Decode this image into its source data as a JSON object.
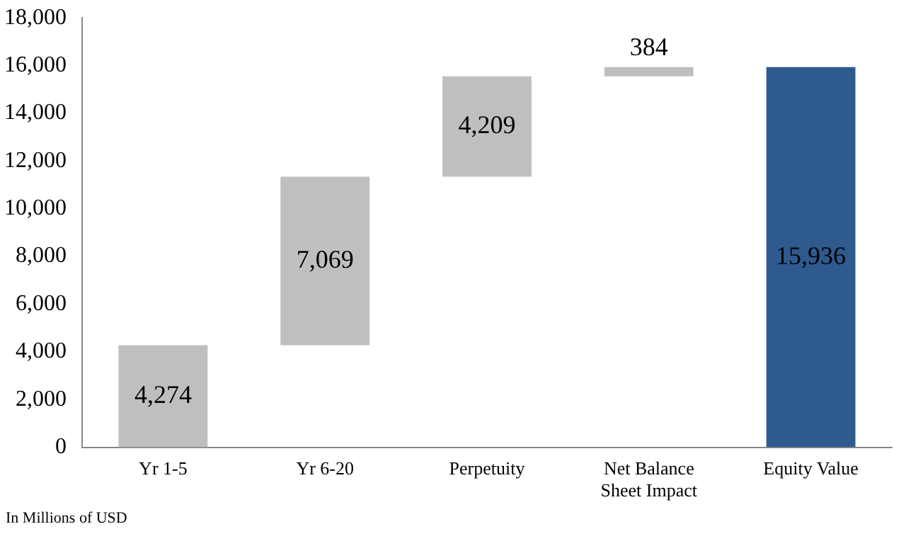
{
  "chart_data": {
    "type": "bar",
    "categories": [
      "Yr 1-5",
      "Yr 6-20",
      "Perpetuity",
      "Net Balance Sheet Impact",
      "Equity Value"
    ],
    "values": [
      4274,
      7069,
      4209,
      384,
      15936
    ],
    "base": [
      0,
      4274,
      11343,
      15552,
      0
    ],
    "colors": [
      "#bfbfbf",
      "#bfbfbf",
      "#bfbfbf",
      "#bfbfbf",
      "#2e5a8e"
    ],
    "value_labels": [
      "4,274",
      "7,069",
      "4,209",
      "384",
      "15,936"
    ],
    "ylim": [
      0,
      18000
    ],
    "yticks": [
      0,
      {
        "value": 2000,
        "label": "2,000"
      },
      {
        "value": 4000,
        "label": "4,000"
      },
      {
        "value": 6000,
        "label": "6,000"
      },
      {
        "value": 8000,
        "label": "8,000"
      },
      {
        "value": 10000,
        "label": "10,000"
      },
      {
        "value": 12000,
        "label": "12,000"
      },
      {
        "value": 14000,
        "label": "14,000"
      },
      {
        "value": 16000,
        "label": "16,000"
      },
      {
        "value": 18000,
        "label": "18,000"
      }
    ],
    "grid": false,
    "legend": false,
    "annotations": [
      "In Millions of USD"
    ]
  }
}
